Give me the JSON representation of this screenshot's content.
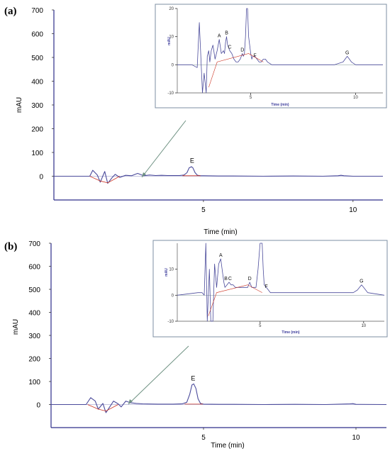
{
  "chart_data": [
    {
      "panel": "(a)",
      "type": "line",
      "ylabel": "mAU",
      "xlabel": "Time (min)",
      "xlim": [
        0.0,
        11.0
      ],
      "ylim": [
        -100,
        700
      ],
      "yticks": [
        0,
        100,
        200,
        300,
        400,
        500,
        600,
        700
      ],
      "xticks": [
        5,
        10
      ],
      "series": [
        {
          "x": [
            0.0,
            1.0,
            1.2,
            1.3,
            1.45,
            1.55,
            1.7,
            1.8,
            1.95,
            2.05,
            2.2,
            2.4,
            2.6,
            2.8,
            3.0,
            3.2,
            3.4,
            3.6,
            3.8,
            4.0,
            4.2,
            4.35,
            4.45,
            4.52,
            4.6,
            4.65,
            4.72,
            4.8,
            4.9,
            5.0,
            5.5,
            6.0,
            7.0,
            8.0,
            9.0,
            9.5,
            9.6,
            9.7,
            10.0,
            11.0
          ],
          "y": [
            0,
            0,
            0,
            25,
            5,
            -25,
            20,
            -30,
            -5,
            8,
            -5,
            4,
            2,
            12,
            2,
            5,
            3,
            4,
            3,
            3,
            3,
            5,
            15,
            35,
            40,
            35,
            15,
            4,
            2,
            2,
            1,
            1,
            0,
            1,
            0,
            2,
            4,
            2,
            0,
            0
          ]
        }
      ],
      "peak_labels": [
        {
          "label": "E",
          "x": 4.62,
          "y": 48
        }
      ],
      "inset": {
        "ylabel": "mAU",
        "xlabel": "Time (min)",
        "xlim": [
          1.5,
          11.3
        ],
        "ylim": [
          -10,
          20
        ],
        "yticks": [
          -10,
          0,
          10,
          20
        ],
        "xticks": [
          5,
          10
        ],
        "series": [
          {
            "x": [
              1.5,
              2.2,
              2.45,
              2.55,
              2.7,
              2.78,
              2.88,
              2.93,
              3.0,
              3.05,
              3.12,
              3.2,
              3.3,
              3.4,
              3.5,
              3.6,
              3.7,
              3.75,
              3.8,
              3.85,
              3.9,
              3.95,
              4.0,
              4.1,
              4.2,
              4.3,
              4.4,
              4.5,
              4.55,
              4.6,
              4.65,
              4.7,
              4.75,
              4.8,
              4.85,
              4.9,
              5.0,
              5.05,
              5.1,
              5.2,
              5.3,
              5.4,
              5.5,
              5.6,
              5.7,
              5.8,
              6.0,
              6.5,
              7.0,
              8.0,
              9.0,
              9.4,
              9.5,
              9.6,
              9.7,
              9.8,
              10.0,
              11.3
            ],
            "y": [
              0,
              0,
              -1,
              15,
              -10,
              -3,
              -10,
              3,
              5,
              1,
              5,
              7,
              2,
              5,
              9,
              4,
              5,
              4,
              8,
              10,
              7,
              6,
              5,
              4,
              2,
              1,
              1,
              2,
              3,
              4,
              3,
              4,
              10,
              20,
              28,
              10,
              4,
              2,
              3,
              3,
              2,
              1,
              1,
              2,
              2,
              1,
              0,
              0,
              0,
              0,
              0,
              1,
              2,
              3,
              2,
              1,
              0,
              0
            ]
          }
        ],
        "peak_labels": [
          {
            "label": "A",
            "x": 3.5,
            "y": 9
          },
          {
            "label": "B",
            "x": 3.85,
            "y": 10
          },
          {
            "label": "C",
            "x": 4.0,
            "y": 5
          },
          {
            "label": "D",
            "x": 4.6,
            "y": 4
          },
          {
            "label": "F",
            "x": 5.2,
            "y": 2
          },
          {
            "label": "G",
            "x": 9.6,
            "y": 3
          }
        ]
      }
    },
    {
      "panel": "(b)",
      "type": "line",
      "ylabel": "mAU",
      "xlabel": "Time (min)",
      "xlim": [
        0.0,
        11.0
      ],
      "ylim": [
        -100,
        700
      ],
      "yticks": [
        0,
        100,
        200,
        300,
        400,
        500,
        600,
        700
      ],
      "xticks": [
        5,
        10
      ],
      "series": [
        {
          "x": [
            0.0,
            1.0,
            1.15,
            1.3,
            1.45,
            1.55,
            1.7,
            1.8,
            1.95,
            2.05,
            2.2,
            2.3,
            2.45,
            2.6,
            2.8,
            3.0,
            3.5,
            4.0,
            4.3,
            4.45,
            4.55,
            4.62,
            4.68,
            4.75,
            4.82,
            4.9,
            5.0,
            5.5,
            6.0,
            7.0,
            8.0,
            9.0,
            9.8,
            9.9,
            10.0,
            11.0
          ],
          "y": [
            0,
            0,
            0,
            30,
            15,
            -20,
            5,
            -35,
            -5,
            15,
            3,
            -10,
            15,
            8,
            5,
            3,
            2,
            2,
            3,
            10,
            45,
            85,
            90,
            70,
            25,
            5,
            2,
            1,
            1,
            0,
            1,
            0,
            3,
            4,
            1,
            0
          ]
        }
      ],
      "peak_labels": [
        {
          "label": "E",
          "x": 4.66,
          "y": 95
        }
      ],
      "inset": {
        "ylabel": "mAU",
        "xlabel": "Time (min)",
        "xlim": [
          1.0,
          11.0
        ],
        "ylim": [
          -10,
          20
        ],
        "yticks": [
          -10,
          0,
          10
        ],
        "xticks": [
          5,
          10
        ],
        "series": [
          {
            "x": [
              1.0,
              2.0,
              2.2,
              2.3,
              2.38,
              2.45,
              2.55,
              2.62,
              2.72,
              2.8,
              2.9,
              3.0,
              3.1,
              3.2,
              3.25,
              3.3,
              3.4,
              3.5,
              3.6,
              3.7,
              3.8,
              3.9,
              4.0,
              4.2,
              4.4,
              4.5,
              4.6,
              4.7,
              4.8,
              4.9,
              5.0,
              5.05,
              5.1,
              5.15,
              5.2,
              5.3,
              5.4,
              5.5,
              5.6,
              6.0,
              7.0,
              8.0,
              9.0,
              9.5,
              9.7,
              9.8,
              9.9,
              10.0,
              10.2,
              11.0
            ],
            "y": [
              0,
              1,
              1,
              0,
              20,
              -10,
              10,
              -10,
              -10,
              12,
              3,
              12,
              14,
              8,
              5,
              3,
              4,
              5,
              4,
              4,
              3,
              3,
              3,
              3,
              3,
              5,
              3,
              3,
              3,
              10,
              22,
              25,
              20,
              10,
              4,
              3,
              2,
              1,
              1,
              1,
              1,
              1,
              1,
              1,
              2,
              3,
              4,
              3,
              1,
              0
            ]
          }
        ],
        "peak_labels": [
          {
            "label": "A",
            "x": 3.1,
            "y": 14
          },
          {
            "label": "B",
            "x": 3.35,
            "y": 5
          },
          {
            "label": "C",
            "x": 3.55,
            "y": 5
          },
          {
            "label": "D",
            "x": 4.5,
            "y": 5
          },
          {
            "label": "F",
            "x": 5.3,
            "y": 2
          },
          {
            "label": "G",
            "x": 9.9,
            "y": 4
          }
        ]
      }
    }
  ],
  "colors": {
    "trace": "#4b4b9b",
    "axis": "#2d2d8a",
    "baseline": "#cc3322",
    "inset_border": "#7d8fa3",
    "arrow": "#6e9182"
  }
}
